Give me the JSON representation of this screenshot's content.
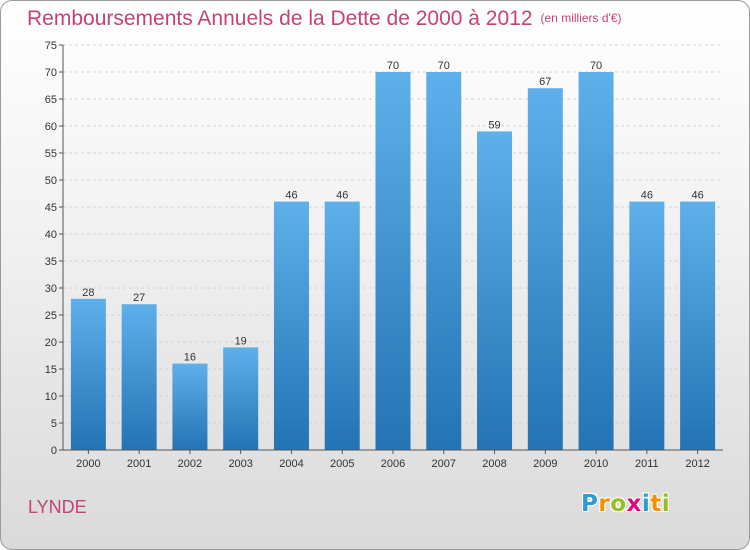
{
  "header": {
    "title": "Remboursements Annuels de la Dette de 2000 à 2012",
    "subtitle": "(en milliers d'€)"
  },
  "footer": {
    "place": "LYNDE",
    "logo": {
      "text": "Proxiti",
      "letters": [
        {
          "char": "P",
          "color": "#2b9bd6"
        },
        {
          "char": "r",
          "color": "#f39200"
        },
        {
          "char": "o",
          "color": "#95c11f"
        },
        {
          "char": "x",
          "color": "#e5007e"
        },
        {
          "char": "i",
          "color": "#2b9bd6"
        },
        {
          "char": "t",
          "color": "#f39200"
        },
        {
          "char": "i",
          "color": "#95c11f"
        }
      ]
    }
  },
  "colors": {
    "accent": "#c5427a",
    "bar_top": "#5eb0ea",
    "bar_bottom": "#2473b4"
  },
  "chart_data": {
    "type": "bar",
    "title": "Remboursements Annuels de la Dette de 2000 à 2012",
    "subtitle": "(en milliers d'€)",
    "categories": [
      "2000",
      "2001",
      "2002",
      "2003",
      "2004",
      "2005",
      "2006",
      "2007",
      "2008",
      "2009",
      "2010",
      "2011",
      "2012"
    ],
    "values": [
      28,
      27,
      16,
      19,
      46,
      46,
      70,
      70,
      59,
      67,
      70,
      46,
      46
    ],
    "xlabel": "",
    "ylabel": "",
    "ylim": [
      0,
      75
    ],
    "yticks": [
      0,
      5,
      10,
      15,
      20,
      25,
      30,
      35,
      40,
      45,
      50,
      55,
      60,
      65,
      70,
      75
    ],
    "grid": true,
    "data_labels": true
  }
}
